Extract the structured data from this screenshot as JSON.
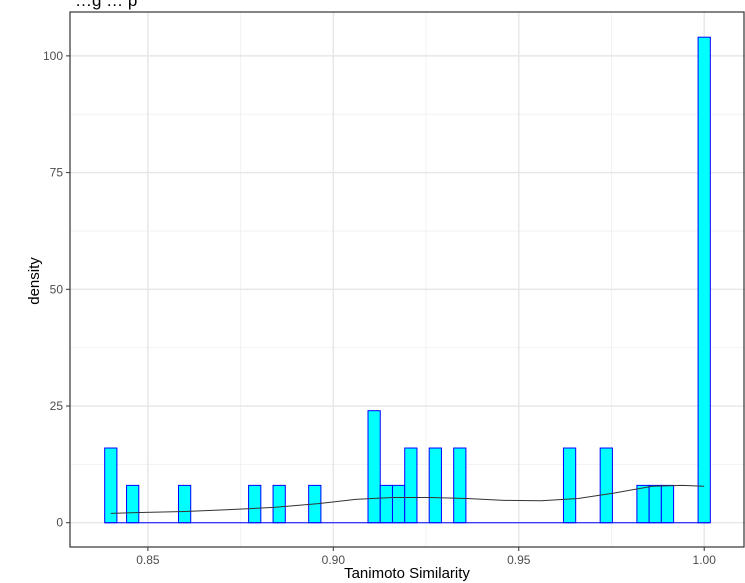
{
  "chart_data": {
    "type": "bar",
    "title": "…g … p",
    "xlabel": "Tanimoto Similarity",
    "ylabel": "density",
    "xlim": [
      0.829,
      1.011
    ],
    "ylim": [
      -5.2,
      109.4
    ],
    "x_ticks": [
      {
        "value": 0.85,
        "label": "0.85"
      },
      {
        "value": 0.9,
        "label": "0.90"
      },
      {
        "value": 0.95,
        "label": "0.95"
      },
      {
        "value": 1.0,
        "label": "1.00"
      }
    ],
    "y_ticks": [
      {
        "value": 0,
        "label": "0"
      },
      {
        "value": 25,
        "label": "25"
      },
      {
        "value": 50,
        "label": "50"
      },
      {
        "value": 75,
        "label": "75"
      },
      {
        "value": 100,
        "label": "100"
      }
    ],
    "bin_width": 0.0033,
    "bins": [
      {
        "x": 0.84,
        "density": 16
      },
      {
        "x": 0.8459,
        "density": 8
      },
      {
        "x": 0.8599,
        "density": 8
      },
      {
        "x": 0.8788,
        "density": 8
      },
      {
        "x": 0.8854,
        "density": 8
      },
      {
        "x": 0.895,
        "density": 8
      },
      {
        "x": 0.911,
        "density": 24
      },
      {
        "x": 0.9143,
        "density": 8
      },
      {
        "x": 0.9176,
        "density": 8
      },
      {
        "x": 0.9209,
        "density": 16
      },
      {
        "x": 0.9275,
        "density": 16
      },
      {
        "x": 0.9341,
        "density": 16
      },
      {
        "x": 0.9637,
        "density": 16
      },
      {
        "x": 0.9736,
        "density": 16
      },
      {
        "x": 0.9835,
        "density": 8
      },
      {
        "x": 0.9868,
        "density": 8
      },
      {
        "x": 0.9901,
        "density": 8
      },
      {
        "x": 1.0,
        "density": 104
      }
    ],
    "density_curve": [
      [
        0.84,
        2.0
      ],
      [
        0.848,
        2.2
      ],
      [
        0.86,
        2.4
      ],
      [
        0.872,
        2.8
      ],
      [
        0.884,
        3.3
      ],
      [
        0.896,
        4.1
      ],
      [
        0.906,
        5.0
      ],
      [
        0.916,
        5.4
      ],
      [
        0.926,
        5.4
      ],
      [
        0.936,
        5.2
      ],
      [
        0.946,
        4.8
      ],
      [
        0.956,
        4.7
      ],
      [
        0.966,
        5.2
      ],
      [
        0.976,
        6.4
      ],
      [
        0.986,
        7.8
      ],
      [
        0.994,
        8.0
      ],
      [
        1.0,
        7.8
      ]
    ],
    "colors": {
      "bar_fill": "#00ffff",
      "bar_stroke": "#0000ff",
      "curve": "#333333",
      "grid_major": "#e6e6e6",
      "grid_minor": "#f2f2f2",
      "panel_border": "#333333"
    },
    "grid": true,
    "legend": "none"
  }
}
